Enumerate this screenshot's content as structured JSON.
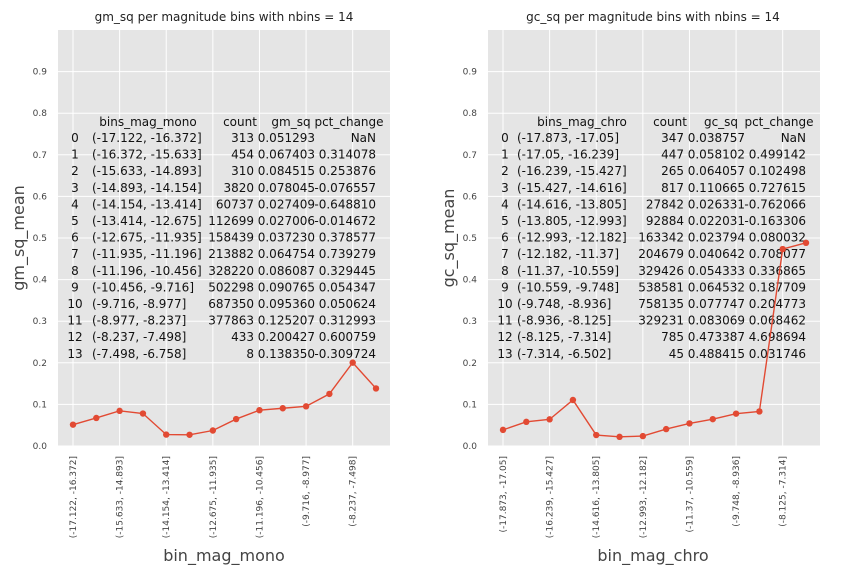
{
  "chart_data": [
    {
      "type": "line",
      "title": "gm_sq per magnitude bins with nbins = 14",
      "xlabel": "bin_mag_mono",
      "ylabel": "gm_sq_mean",
      "ylim": [
        0,
        1.0
      ],
      "yticks": [
        "0.0",
        "0.1",
        "0.2",
        "0.3",
        "0.4",
        "0.5",
        "0.6",
        "0.7",
        "0.8",
        "0.9"
      ],
      "grid": true,
      "categories": [
        "(-17.122, -16.372]",
        "(-16.372, -15.633]",
        "(-15.633, -14.893]",
        "(-14.893, -14.154]",
        "(-14.154, -13.414]",
        "(-13.414, -12.675]",
        "(-12.675, -11.935]",
        "(-11.935, -11.196]",
        "(-11.196, -10.456]",
        "(-10.456, -9.716]",
        "(-9.716, -8.977]",
        "(-8.977, -8.237]",
        "(-8.237, -7.498]",
        "(-7.498, -6.758]"
      ],
      "xtick_labels": [
        "(-17.122, -16.372]",
        "(-15.633, -14.893]",
        "(-14.154, -13.414]",
        "(-12.675, -11.935]",
        "(-11.196, -10.456]",
        "(-9.716, -8.977]",
        "(-8.237, -7.498]"
      ],
      "values": [
        0.051293,
        0.067403,
        0.084515,
        0.078045,
        0.027409,
        0.027006,
        0.03723,
        0.064754,
        0.086087,
        0.090765,
        0.09536,
        0.125207,
        0.200427,
        0.13835
      ],
      "table": {
        "headers": [
          "bins_mag_mono",
          "count",
          "gm_sq",
          "pct_change"
        ],
        "rows": [
          [
            "0",
            "(-17.122, -16.372]",
            "313",
            "0.051293",
            "NaN"
          ],
          [
            "1",
            "(-16.372, -15.633]",
            "454",
            "0.067403",
            "0.314078"
          ],
          [
            "2",
            "(-15.633, -14.893]",
            "310",
            "0.084515",
            "0.253876"
          ],
          [
            "3",
            "(-14.893, -14.154]",
            "3820",
            "0.078045",
            "-0.076557"
          ],
          [
            "4",
            "(-14.154, -13.414]",
            "60737",
            "0.027409",
            "-0.648810"
          ],
          [
            "5",
            "(-13.414, -12.675]",
            "112699",
            "0.027006",
            "-0.014672"
          ],
          [
            "6",
            "(-12.675, -11.935]",
            "158439",
            "0.037230",
            "0.378577"
          ],
          [
            "7",
            "(-11.935, -11.196]",
            "213882",
            "0.064754",
            "0.739279"
          ],
          [
            "8",
            "(-11.196, -10.456]",
            "328220",
            "0.086087",
            "0.329445"
          ],
          [
            "9",
            "(-10.456, -9.716]",
            "502298",
            "0.090765",
            "0.054347"
          ],
          [
            "10",
            "(-9.716, -8.977]",
            "687350",
            "0.095360",
            "0.050624"
          ],
          [
            "11",
            "(-8.977, -8.237]",
            "377863",
            "0.125207",
            "0.312993"
          ],
          [
            "12",
            "(-8.237, -7.498]",
            "433",
            "0.200427",
            "0.600759"
          ],
          [
            "13",
            "(-7.498, -6.758]",
            "8",
            "0.138350",
            "-0.309724"
          ]
        ]
      },
      "colors": {
        "line": "#e24a33",
        "background": "#e5e5e5",
        "grid": "#ffffff"
      }
    },
    {
      "type": "line",
      "title": "gc_sq per magnitude bins with nbins = 14",
      "xlabel": "bin_mag_chro",
      "ylabel": "gc_sq_mean",
      "ylim": [
        0,
        1.0
      ],
      "yticks": [
        "0.0",
        "0.1",
        "0.2",
        "0.3",
        "0.4",
        "0.5",
        "0.6",
        "0.7",
        "0.8",
        "0.9"
      ],
      "grid": true,
      "categories": [
        "(-17.873, -17.05]",
        "(-17.05, -16.239]",
        "(-16.239, -15.427]",
        "(-15.427, -14.616]",
        "(-14.616, -13.805]",
        "(-13.805, -12.993]",
        "(-12.993, -12.182]",
        "(-12.182, -11.37]",
        "(-11.37, -10.559]",
        "(-10.559, -9.748]",
        "(-9.748, -8.936]",
        "(-8.936, -8.125]",
        "(-8.125, -7.314]",
        "(-7.314, -6.502]"
      ],
      "xtick_labels": [
        "(-17.873, -17.05]",
        "(-16.239, -15.427]",
        "(-14.616, -13.805]",
        "(-12.993, -12.182]",
        "(-11.37, -10.559]",
        "(-9.748, -8.936]",
        "(-8.125, -7.314]"
      ],
      "values": [
        0.038757,
        0.058102,
        0.064057,
        0.110665,
        0.026331,
        0.022031,
        0.023794,
        0.040642,
        0.054333,
        0.064532,
        0.077747,
        0.083069,
        0.473387,
        0.488415
      ],
      "table": {
        "headers": [
          "bins_mag_chro",
          "count",
          "gc_sq",
          "pct_change"
        ],
        "rows": [
          [
            "0",
            "(-17.873, -17.05]",
            "347",
            "0.038757",
            "NaN"
          ],
          [
            "1",
            "(-17.05, -16.239]",
            "447",
            "0.058102",
            "0.499142"
          ],
          [
            "2",
            "(-16.239, -15.427]",
            "265",
            "0.064057",
            "0.102498"
          ],
          [
            "3",
            "(-15.427, -14.616]",
            "817",
            "0.110665",
            "0.727615"
          ],
          [
            "4",
            "(-14.616, -13.805]",
            "27842",
            "0.026331",
            "-0.762066"
          ],
          [
            "5",
            "(-13.805, -12.993]",
            "92884",
            "0.022031",
            "-0.163306"
          ],
          [
            "6",
            "(-12.993, -12.182]",
            "163342",
            "0.023794",
            "0.080032"
          ],
          [
            "7",
            "(-12.182, -11.37]",
            "204679",
            "0.040642",
            "0.708077"
          ],
          [
            "8",
            "(-11.37, -10.559]",
            "329426",
            "0.054333",
            "0.336865"
          ],
          [
            "9",
            "(-10.559, -9.748]",
            "538581",
            "0.064532",
            "0.187709"
          ],
          [
            "10",
            "(-9.748, -8.936]",
            "758135",
            "0.077747",
            "0.204773"
          ],
          [
            "11",
            "(-8.936, -8.125]",
            "329231",
            "0.083069",
            "0.068462"
          ],
          [
            "12",
            "(-8.125, -7.314]",
            "785",
            "0.473387",
            "4.698694"
          ],
          [
            "13",
            "(-7.314, -6.502]",
            "45",
            "0.488415",
            "0.031746"
          ]
        ]
      },
      "colors": {
        "line": "#e24a33",
        "background": "#e5e5e5",
        "grid": "#ffffff"
      }
    }
  ]
}
